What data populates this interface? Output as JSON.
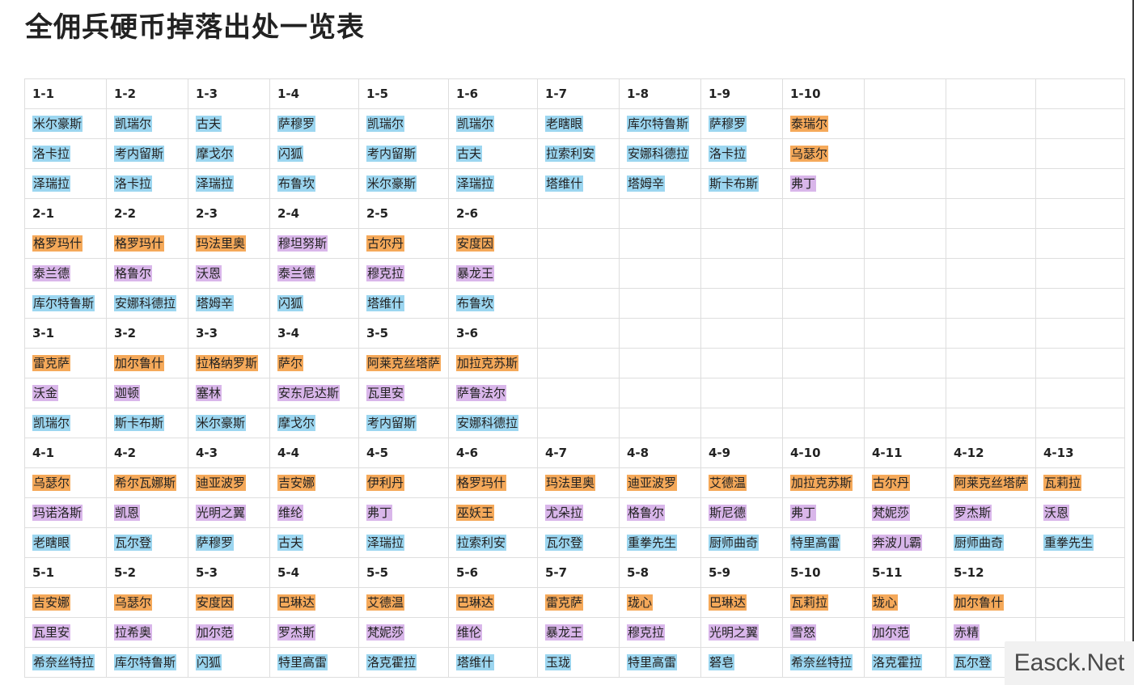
{
  "title": "全佣兵硬币掉落出处一览表",
  "colors": {
    "blue": "#9cd6f0",
    "orange": "#f5a95a",
    "purple": "#d9b6ea"
  },
  "watermark": "Easck.Net",
  "groups": [
    {
      "stages": [
        "1-1",
        "1-2",
        "1-3",
        "1-4",
        "1-5",
        "1-6",
        "1-7",
        "1-8",
        "1-9",
        "1-10",
        "",
        "",
        ""
      ],
      "rows": [
        [
          {
            "t": "米尔豪斯",
            "c": "blue"
          },
          {
            "t": "凯瑞尔",
            "c": "blue"
          },
          {
            "t": "古夫",
            "c": "blue"
          },
          {
            "t": "萨穆罗",
            "c": "blue"
          },
          {
            "t": "凯瑞尔",
            "c": "blue"
          },
          {
            "t": "凯瑞尔",
            "c": "blue"
          },
          {
            "t": "老瞎眼",
            "c": "blue"
          },
          {
            "t": "库尔特鲁斯",
            "c": "blue"
          },
          {
            "t": "萨穆罗",
            "c": "blue"
          },
          {
            "t": "泰瑞尔",
            "c": "orange"
          },
          null,
          null,
          null
        ],
        [
          {
            "t": "洛卡拉",
            "c": "blue"
          },
          {
            "t": "考内留斯",
            "c": "blue"
          },
          {
            "t": "摩戈尔",
            "c": "blue"
          },
          {
            "t": "闪狐",
            "c": "blue"
          },
          {
            "t": "考内留斯",
            "c": "blue"
          },
          {
            "t": "古夫",
            "c": "blue"
          },
          {
            "t": "拉索利安",
            "c": "blue"
          },
          {
            "t": "安娜科德拉",
            "c": "blue"
          },
          {
            "t": "洛卡拉",
            "c": "blue"
          },
          {
            "t": "乌瑟尔",
            "c": "orange"
          },
          null,
          null,
          null
        ],
        [
          {
            "t": "泽瑞拉",
            "c": "blue"
          },
          {
            "t": "洛卡拉",
            "c": "blue"
          },
          {
            "t": "泽瑞拉",
            "c": "blue"
          },
          {
            "t": "布鲁坎",
            "c": "blue"
          },
          {
            "t": "米尔豪斯",
            "c": "blue"
          },
          {
            "t": "泽瑞拉",
            "c": "blue"
          },
          {
            "t": "塔维什",
            "c": "blue"
          },
          {
            "t": "塔姆辛",
            "c": "blue"
          },
          {
            "t": "斯卡布斯",
            "c": "blue"
          },
          {
            "t": "弗丁",
            "c": "purple"
          },
          null,
          null,
          null
        ]
      ]
    },
    {
      "stages": [
        "2-1",
        "2-2",
        "2-3",
        "2-4",
        "2-5",
        "2-6",
        "",
        "",
        "",
        "",
        "",
        "",
        ""
      ],
      "rows": [
        [
          {
            "t": "格罗玛什",
            "c": "orange"
          },
          {
            "t": "格罗玛什",
            "c": "orange"
          },
          {
            "t": "玛法里奥",
            "c": "orange"
          },
          {
            "t": "穆坦努斯",
            "c": "purple"
          },
          {
            "t": "古尔丹",
            "c": "orange"
          },
          {
            "t": "安度因",
            "c": "orange"
          },
          null,
          null,
          null,
          null,
          null,
          null,
          null
        ],
        [
          {
            "t": "泰兰德",
            "c": "purple"
          },
          {
            "t": "格鲁尔",
            "c": "purple"
          },
          {
            "t": "沃恩",
            "c": "purple"
          },
          {
            "t": "泰兰德",
            "c": "purple"
          },
          {
            "t": "穆克拉",
            "c": "purple"
          },
          {
            "t": "暴龙王",
            "c": "purple"
          },
          null,
          null,
          null,
          null,
          null,
          null,
          null
        ],
        [
          {
            "t": "库尔特鲁斯",
            "c": "blue"
          },
          {
            "t": "安娜科德拉",
            "c": "blue"
          },
          {
            "t": "塔姆辛",
            "c": "blue"
          },
          {
            "t": "闪狐",
            "c": "blue"
          },
          {
            "t": "塔维什",
            "c": "blue"
          },
          {
            "t": "布鲁坎",
            "c": "blue"
          },
          null,
          null,
          null,
          null,
          null,
          null,
          null
        ]
      ]
    },
    {
      "stages": [
        "3-1",
        "3-2",
        "3-3",
        "3-4",
        "3-5",
        "3-6",
        "",
        "",
        "",
        "",
        "",
        "",
        ""
      ],
      "rows": [
        [
          {
            "t": "雷克萨",
            "c": "orange"
          },
          {
            "t": "加尔鲁什",
            "c": "orange"
          },
          {
            "t": "拉格纳罗斯",
            "c": "orange"
          },
          {
            "t": "萨尔",
            "c": "orange"
          },
          {
            "t": "阿莱克丝塔萨",
            "c": "orange"
          },
          {
            "t": "加拉克苏斯",
            "c": "orange"
          },
          null,
          null,
          null,
          null,
          null,
          null,
          null
        ],
        [
          {
            "t": "沃金",
            "c": "purple"
          },
          {
            "t": "迦顿",
            "c": "purple"
          },
          {
            "t": "塞林",
            "c": "purple"
          },
          {
            "t": "安东尼达斯",
            "c": "purple"
          },
          {
            "t": "瓦里安",
            "c": "purple"
          },
          {
            "t": "萨鲁法尔",
            "c": "purple"
          },
          null,
          null,
          null,
          null,
          null,
          null,
          null
        ],
        [
          {
            "t": "凯瑞尔",
            "c": "blue"
          },
          {
            "t": "斯卡布斯",
            "c": "blue"
          },
          {
            "t": "米尔豪斯",
            "c": "blue"
          },
          {
            "t": "摩戈尔",
            "c": "blue"
          },
          {
            "t": "考内留斯",
            "c": "blue"
          },
          {
            "t": "安娜科德拉",
            "c": "blue"
          },
          null,
          null,
          null,
          null,
          null,
          null,
          null
        ]
      ]
    },
    {
      "stages": [
        "4-1",
        "4-2",
        "4-3",
        "4-4",
        "4-5",
        "4-6",
        "4-7",
        "4-8",
        "4-9",
        "4-10",
        "4-11",
        "4-12",
        "4-13"
      ],
      "rows": [
        [
          {
            "t": "乌瑟尔",
            "c": "orange"
          },
          {
            "t": "希尔瓦娜斯",
            "c": "orange"
          },
          {
            "t": "迪亚波罗",
            "c": "orange"
          },
          {
            "t": "吉安娜",
            "c": "orange"
          },
          {
            "t": "伊利丹",
            "c": "orange"
          },
          {
            "t": "格罗玛什",
            "c": "orange"
          },
          {
            "t": "玛法里奥",
            "c": "orange"
          },
          {
            "t": "迪亚波罗",
            "c": "orange"
          },
          {
            "t": "艾德温",
            "c": "orange"
          },
          {
            "t": "加拉克苏斯",
            "c": "orange"
          },
          {
            "t": "古尔丹",
            "c": "orange"
          },
          {
            "t": "阿莱克丝塔萨",
            "c": "orange"
          },
          {
            "t": "瓦莉拉",
            "c": "orange"
          }
        ],
        [
          {
            "t": "玛诺洛斯",
            "c": "purple"
          },
          {
            "t": "凯恩",
            "c": "purple"
          },
          {
            "t": "光明之翼",
            "c": "purple"
          },
          {
            "t": "维纶",
            "c": "purple"
          },
          {
            "t": "弗丁",
            "c": "purple"
          },
          {
            "t": "巫妖王",
            "c": "orange"
          },
          {
            "t": "尤朵拉",
            "c": "purple"
          },
          {
            "t": "格鲁尔",
            "c": "purple"
          },
          {
            "t": "斯尼德",
            "c": "purple"
          },
          {
            "t": "弗丁",
            "c": "purple"
          },
          {
            "t": "梵妮莎",
            "c": "purple"
          },
          {
            "t": "罗杰斯",
            "c": "purple"
          },
          {
            "t": "沃恩",
            "c": "purple"
          }
        ],
        [
          {
            "t": "老瞎眼",
            "c": "blue"
          },
          {
            "t": "瓦尔登",
            "c": "blue"
          },
          {
            "t": "萨穆罗",
            "c": "blue"
          },
          {
            "t": "古夫",
            "c": "blue"
          },
          {
            "t": "泽瑞拉",
            "c": "blue"
          },
          {
            "t": "拉索利安",
            "c": "blue"
          },
          {
            "t": "瓦尔登",
            "c": "blue"
          },
          {
            "t": "重拳先生",
            "c": "blue"
          },
          {
            "t": "厨师曲奇",
            "c": "blue"
          },
          {
            "t": "特里高雷",
            "c": "blue"
          },
          {
            "t": "奔波儿霸",
            "c": "purple"
          },
          {
            "t": "厨师曲奇",
            "c": "blue"
          },
          {
            "t": "重拳先生",
            "c": "blue"
          }
        ]
      ]
    },
    {
      "stages": [
        "5-1",
        "5-2",
        "5-3",
        "5-4",
        "5-5",
        "5-6",
        "5-7",
        "5-8",
        "5-9",
        "5-10",
        "5-11",
        "5-12",
        ""
      ],
      "rows": [
        [
          {
            "t": "吉安娜",
            "c": "orange"
          },
          {
            "t": "乌瑟尔",
            "c": "orange"
          },
          {
            "t": "安度因",
            "c": "orange"
          },
          {
            "t": "巴琳达",
            "c": "orange"
          },
          {
            "t": "艾德温",
            "c": "orange"
          },
          {
            "t": "巴琳达",
            "c": "orange"
          },
          {
            "t": "雷克萨",
            "c": "orange"
          },
          {
            "t": "珑心",
            "c": "orange"
          },
          {
            "t": "巴琳达",
            "c": "orange"
          },
          {
            "t": "瓦莉拉",
            "c": "orange"
          },
          {
            "t": "珑心",
            "c": "orange"
          },
          {
            "t": "加尔鲁什",
            "c": "orange"
          },
          null
        ],
        [
          {
            "t": "瓦里安",
            "c": "purple"
          },
          {
            "t": "拉希奥",
            "c": "purple"
          },
          {
            "t": "加尔范",
            "c": "purple"
          },
          {
            "t": "罗杰斯",
            "c": "purple"
          },
          {
            "t": "梵妮莎",
            "c": "purple"
          },
          {
            "t": "维伦",
            "c": "purple"
          },
          {
            "t": "暴龙王",
            "c": "purple"
          },
          {
            "t": "穆克拉",
            "c": "purple"
          },
          {
            "t": "光明之翼",
            "c": "purple"
          },
          {
            "t": "雪怒",
            "c": "purple"
          },
          {
            "t": "加尔范",
            "c": "purple"
          },
          {
            "t": "赤精",
            "c": "purple"
          },
          null
        ],
        [
          {
            "t": "希奈丝特拉",
            "c": "blue"
          },
          {
            "t": "库尔特鲁斯",
            "c": "blue"
          },
          {
            "t": "闪狐",
            "c": "blue"
          },
          {
            "t": "特里高雷",
            "c": "blue"
          },
          {
            "t": "洛克霍拉",
            "c": "blue"
          },
          {
            "t": "塔维什",
            "c": "blue"
          },
          {
            "t": "玉珑",
            "c": "blue"
          },
          {
            "t": "特里高雷",
            "c": "blue"
          },
          {
            "t": "砮皂",
            "c": "blue"
          },
          {
            "t": "希奈丝特拉",
            "c": "blue"
          },
          {
            "t": "洛克霍拉",
            "c": "blue"
          },
          {
            "t": "瓦尔登",
            "c": "blue"
          },
          null
        ]
      ]
    }
  ]
}
